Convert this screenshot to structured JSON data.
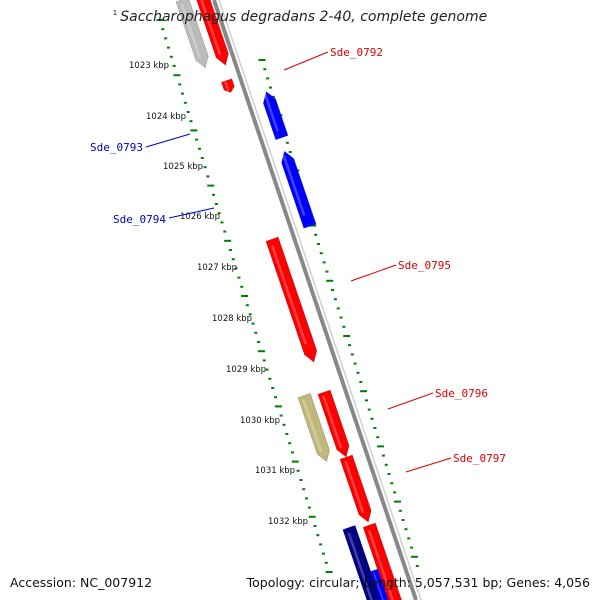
{
  "title": {
    "superscript": "1",
    "text": "Saccharophagus degradans 2-40, complete genome"
  },
  "footer": {
    "accession": "Accession: NC_007912",
    "topology": "Topology: circular; Length: 5,057,531 bp; Genes: 4,056"
  },
  "colors": {
    "forward_gene": "#ff0000",
    "reverse_gene": "#0000ff",
    "other_gene_gray": "#bbbbbb",
    "other_gene_olive": "#c0b87a",
    "other_gene_navy": "#000080",
    "backbone": "#888888",
    "tick_marks": "#008000",
    "forward_label": "#dd0000",
    "reverse_label": "#0000cc"
  },
  "scale_labels": [
    "1023 kbp",
    "1024 kbp",
    "1025 kbp",
    "1026 kbp",
    "1027 kbp",
    "1028 kbp",
    "1029 kbp",
    "1030 kbp",
    "1031 kbp",
    "1032 kbp"
  ],
  "genes": [
    {
      "name": "Sde_0792",
      "strand": "forward",
      "label_side": "right",
      "color": "red"
    },
    {
      "name": "Sde_0793",
      "strand": "reverse",
      "label_side": "left",
      "color": "blue"
    },
    {
      "name": "Sde_0794",
      "strand": "reverse",
      "label_side": "left",
      "color": "blue"
    },
    {
      "name": "Sde_0795",
      "strand": "forward",
      "label_side": "right",
      "color": "red"
    },
    {
      "name": "Sde_0796",
      "strand": "forward",
      "label_side": "right",
      "color": "olive"
    },
    {
      "name": "Sde_0797",
      "strand": "forward",
      "label_side": "right",
      "color": "red"
    }
  ]
}
